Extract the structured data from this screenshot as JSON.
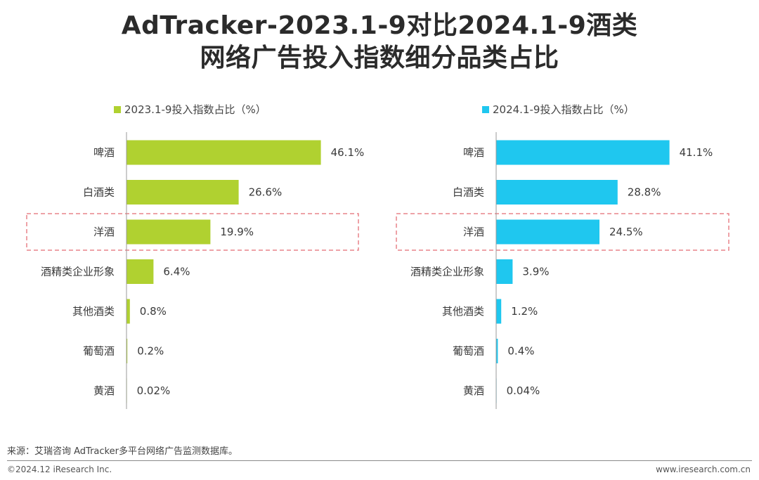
{
  "title_line1": "AdTracker-2023.1-9对比2024.1-9酒类",
  "title_line2": "网络广告投入指数细分品类占比",
  "chart_data": [
    {
      "type": "bar",
      "orientation": "horizontal",
      "series_name": "2023.1-9投入指数占比（%）",
      "color": "#b0d130",
      "categories": [
        "啤酒",
        "白酒类",
        "洋酒",
        "酒精类企业形象",
        "其他酒类",
        "葡萄酒",
        "黄酒"
      ],
      "values": [
        46.1,
        26.6,
        19.9,
        6.4,
        0.8,
        0.2,
        0.02
      ],
      "value_labels": [
        "46.1%",
        "26.6%",
        "19.9%",
        "6.4%",
        "0.8%",
        "0.2%",
        "0.02%"
      ],
      "highlighted_category": "洋酒",
      "xlim": [
        0,
        50
      ]
    },
    {
      "type": "bar",
      "orientation": "horizontal",
      "series_name": "2024.1-9投入指数占比（%）",
      "color": "#1fc7ef",
      "categories": [
        "啤酒",
        "白酒类",
        "洋酒",
        "酒精类企业形象",
        "其他酒类",
        "葡萄酒",
        "黄酒"
      ],
      "values": [
        41.1,
        28.8,
        24.5,
        3.9,
        1.2,
        0.4,
        0.04
      ],
      "value_labels": [
        "41.1%",
        "28.8%",
        "24.5%",
        "3.9%",
        "1.2%",
        "0.4%",
        "0.04%"
      ],
      "highlighted_category": "洋酒",
      "xlim": [
        0,
        50
      ]
    }
  ],
  "highlight_color": "#e8838a",
  "footer": {
    "source": "来源：艾瑞咨询 AdTracker多平台网络广告监测数据库。",
    "copyright": "©2024.12 iResearch Inc.",
    "url": "www.iresearch.com.cn"
  }
}
